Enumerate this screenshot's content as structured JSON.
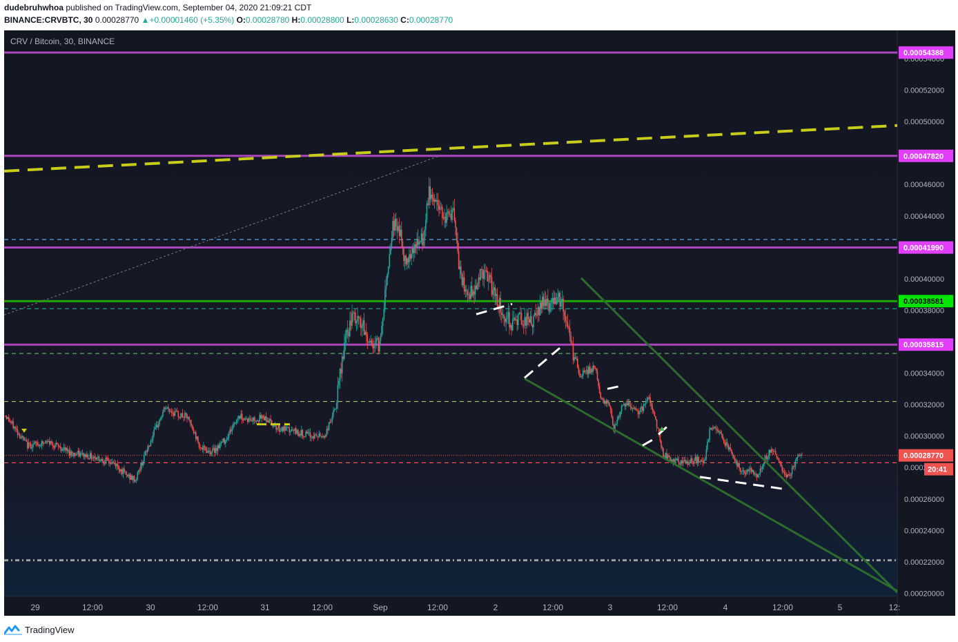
{
  "header": {
    "author": "dudebruhwhoa",
    "published_text": "published on TradingView.com, September 04, 2020 21:09:21 CDT",
    "symbol": "BINANCE:CRVBTC, 30",
    "last": "0.00028770",
    "change": "+0.00001460 (+5.35%)",
    "open_label": "O:",
    "open": "0.00028780",
    "high_label": "H:",
    "high": "0.00028800",
    "low_label": "L:",
    "low": "0.00028630",
    "close_label": "C:",
    "close": "0.00028770"
  },
  "chart_title": "CRV / Bitcoin, 30, BINANCE",
  "footer": {
    "brand": "TradingView"
  },
  "chart_data": {
    "type": "candlestick",
    "title": "CRV / Bitcoin, 30, BINANCE",
    "ylim": [
      0.000198,
      0.000558
    ],
    "y_ticks": [
      "0.00020000",
      "0.00022000",
      "0.00024000",
      "0.00026000",
      "0.00028000",
      "0.00030000",
      "0.00032000",
      "0.00034000",
      "0.00036000",
      "0.00038000",
      "0.00040000",
      "0.00042000",
      "0.00044000",
      "0.00046000",
      "0.00048000",
      "0.00050000",
      "0.00052000",
      "0.00054000"
    ],
    "x_ticks": [
      "29",
      "12:00",
      "30",
      "12:00",
      "31",
      "12:00",
      "Sep",
      "12:00",
      "2",
      "12:00",
      "3",
      "12:00",
      "4",
      "12:00",
      "5",
      "12:"
    ],
    "colors": {
      "background": "#131722",
      "up": "#26a69a",
      "down": "#ef5350",
      "magenta": "#ab47bc",
      "magenta_label": "#e040fb",
      "green": "#1faa00",
      "green_label": "#00e600",
      "current_label": "#ef5350",
      "yellow": "#c8cc1a",
      "wedge": "#2e6b2e",
      "white": "#ffffff"
    },
    "level_labels": [
      {
        "value": "0.00054388",
        "color": "#e040fb"
      },
      {
        "value": "0.00047820",
        "color": "#e040fb"
      },
      {
        "value": "0.00041990",
        "color": "#e040fb"
      },
      {
        "value": "0.00038581",
        "color": "#00e600"
      },
      {
        "value": "0.00035815",
        "color": "#e040fb"
      },
      {
        "value": "0.00028770",
        "color": "#ef5350"
      }
    ],
    "countdown": "20:41",
    "solid_levels": [
      0.00054388,
      0.0004782,
      0.0004199,
      0.00035815
    ],
    "green_level": 0.00038581,
    "dashed_levels": [
      {
        "y": 0.0004784,
        "color": "#9e9e9e"
      },
      {
        "y": 0.000425,
        "color": "#64b5f6"
      },
      {
        "y": 0.000381,
        "color": "#26a69a"
      },
      {
        "y": 0.0003525,
        "color": "#66bb6a"
      },
      {
        "y": 0.000322,
        "color": "#9ccc65"
      },
      {
        "y": 0.000283,
        "color": "#ef5350"
      },
      {
        "y": 0.000221,
        "color": "#9e9e9e"
      }
    ],
    "current_price": 0.0002877,
    "anchors": [
      [
        0,
        0.000313
      ],
      [
        20,
        0.000294
      ],
      [
        40,
        0.000296
      ],
      [
        60,
        0.000289
      ],
      [
        80,
        0.000287
      ],
      [
        100,
        0.000282
      ],
      [
        110,
        0.000275
      ],
      [
        118,
        0.000272
      ],
      [
        125,
        0.000285
      ],
      [
        135,
        0.000302
      ],
      [
        145,
        0.000318
      ],
      [
        155,
        0.000314
      ],
      [
        165,
        0.000312
      ],
      [
        178,
        0.000292
      ],
      [
        188,
        0.00029
      ],
      [
        200,
        0.000298
      ],
      [
        212,
        0.000313
      ],
      [
        222,
        0.00031
      ],
      [
        235,
        0.000312
      ],
      [
        248,
        0.000305
      ],
      [
        262,
        0.000303
      ],
      [
        278,
        0.0003
      ],
      [
        290,
        0.0003
      ],
      [
        300,
        0.000318
      ],
      [
        308,
        0.000358
      ],
      [
        315,
        0.000375
      ],
      [
        323,
        0.000372
      ],
      [
        330,
        0.00036
      ],
      [
        340,
        0.000358
      ],
      [
        347,
        0.000405
      ],
      [
        352,
        0.000435
      ],
      [
        358,
        0.000432
      ],
      [
        363,
        0.00041
      ],
      [
        370,
        0.00042
      ],
      [
        380,
        0.000425
      ],
      [
        385,
        0.000455
      ],
      [
        392,
        0.000448
      ],
      [
        400,
        0.00044
      ],
      [
        407,
        0.000442
      ],
      [
        412,
        0.000408
      ],
      [
        418,
        0.00039
      ],
      [
        425,
        0.000392
      ],
      [
        433,
        0.000405
      ],
      [
        440,
        0.000398
      ],
      [
        446,
        0.000388
      ],
      [
        452,
        0.000378
      ],
      [
        460,
        0.000372
      ],
      [
        470,
        0.000375
      ],
      [
        480,
        0.000372
      ],
      [
        490,
        0.000388
      ],
      [
        496,
        0.000382
      ],
      [
        502,
        0.000392
      ],
      [
        509,
        0.000375
      ],
      [
        515,
        0.000355
      ],
      [
        522,
        0.000338
      ],
      [
        530,
        0.000342
      ],
      [
        536,
        0.000343
      ],
      [
        542,
        0.000322
      ],
      [
        548,
        0.000322
      ],
      [
        553,
        0.000305
      ],
      [
        560,
        0.000318
      ],
      [
        567,
        0.00032
      ],
      [
        573,
        0.000315
      ],
      [
        580,
        0.000318
      ],
      [
        585,
        0.000325
      ],
      [
        591,
        0.00031
      ],
      [
        598,
        0.000288
      ],
      [
        605,
        0.000285
      ],
      [
        612,
        0.000283
      ],
      [
        620,
        0.000283
      ],
      [
        628,
        0.000285
      ],
      [
        635,
        0.000283
      ],
      [
        640,
        0.000303
      ],
      [
        646,
        0.000305
      ],
      [
        652,
        0.000298
      ],
      [
        658,
        0.000292
      ],
      [
        664,
        0.000283
      ],
      [
        670,
        0.000277
      ],
      [
        677,
        0.000278
      ],
      [
        684,
        0.000275
      ],
      [
        690,
        0.000285
      ],
      [
        697,
        0.000292
      ],
      [
        704,
        0.000283
      ],
      [
        710,
        0.000273
      ],
      [
        716,
        0.00028
      ],
      [
        720,
        0.000286
      ],
      [
        724,
        0.0002877
      ]
    ],
    "bars": 725
  }
}
